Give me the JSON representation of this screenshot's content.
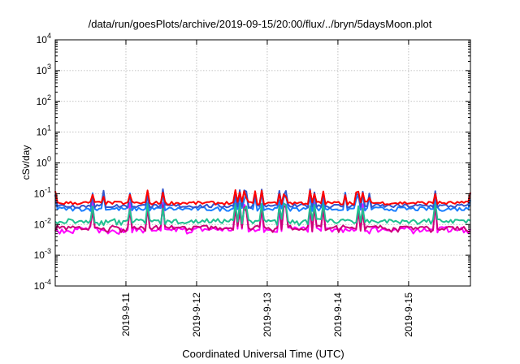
{
  "chart_data": {
    "type": "line",
    "title": "/data/run/goesPlots/archive/2019-09-15/20:00/flux/../bryn/5daysMoon.plot",
    "xlabel": "Coordinated Universal Time (UTC)",
    "ylabel": "cSv/day",
    "yscale": "log",
    "ylim": [
      0.0001,
      10000
    ],
    "xlim": [
      "2019-09-10T00:00",
      "2019-09-15T21:00"
    ],
    "grid": true,
    "y_ticks": [
      {
        "base": "10",
        "exp": "-4"
      },
      {
        "base": "10",
        "exp": "-3"
      },
      {
        "base": "10",
        "exp": "-2"
      },
      {
        "base": "10",
        "exp": "-1"
      },
      {
        "base": "10",
        "exp": "0"
      },
      {
        "base": "10",
        "exp": "1"
      },
      {
        "base": "10",
        "exp": "2"
      },
      {
        "base": "10",
        "exp": "3"
      },
      {
        "base": "10",
        "exp": "4"
      }
    ],
    "x_ticks": [
      "2019-9-11",
      "2019-9-12",
      "2019-9-13",
      "2019-9-14",
      "2019-9-15"
    ],
    "series": [
      {
        "color": "#ff0000",
        "base": 0.05,
        "spread": 0.25,
        "spike": 0.12
      },
      {
        "color": "#3355cc",
        "base": 0.04,
        "spread": 0.3,
        "spike": 0.13
      },
      {
        "color": "#1a7fff",
        "base": 0.032,
        "spread": 0.3,
        "spike": 0.1
      },
      {
        "color": "#20c090",
        "base": 0.013,
        "spread": 0.35,
        "spike": 0.05
      },
      {
        "color": "#cc0077",
        "base": 0.008,
        "spread": 0.35,
        "spike": 0.04
      },
      {
        "color": "#ff00ff",
        "base": 0.007,
        "spread": 0.45,
        "spike": 0.05
      }
    ]
  }
}
